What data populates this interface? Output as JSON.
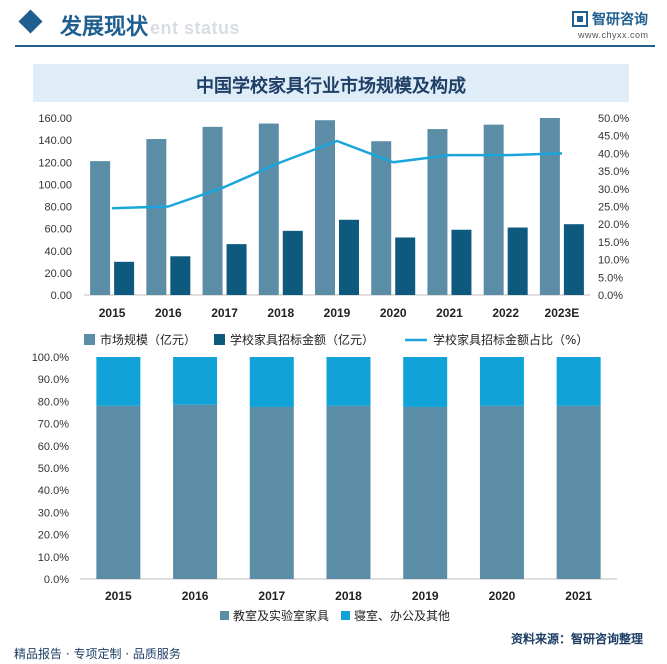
{
  "header": {
    "title": "发展现状",
    "watermark": "ent status",
    "brand_name": "智研咨询",
    "brand_url": "www.chyxx.com"
  },
  "footer": {
    "left": "精品报告 · 专项定制 · 品质服务",
    "source": "资料来源：智研咨询整理"
  },
  "colors": {
    "market": "#5b8ea6",
    "amount": "#0e5a7e",
    "share": "#1aa5dc",
    "classroom": "#5b8ea6",
    "dorm": "#11a3d8",
    "accent": "#1f5f8f"
  },
  "chart_data": [
    {
      "type": "bar",
      "title": "中国学校家具行业市场规模及构成",
      "categories": [
        "2015",
        "2016",
        "2017",
        "2018",
        "2019",
        "2020",
        "2021",
        "2022",
        "2023E"
      ],
      "series": [
        {
          "name": "市场规模（亿元）",
          "type": "bar",
          "axis": "left",
          "values": [
            121,
            141,
            152,
            155,
            158,
            139,
            150,
            154,
            160
          ]
        },
        {
          "name": "学校家具招标金额（亿元）",
          "type": "bar",
          "axis": "left",
          "values": [
            30,
            35,
            46,
            58,
            68,
            52,
            59,
            61,
            64
          ]
        },
        {
          "name": "学校家具招标金额占比（%）",
          "type": "line",
          "axis": "right",
          "values": [
            24.5,
            25.0,
            30.5,
            37.5,
            43.5,
            37.5,
            39.5,
            39.5,
            40.0
          ]
        }
      ],
      "left_axis": {
        "min": 0,
        "max": 160,
        "step": 20,
        "format": "0.00"
      },
      "right_axis": {
        "min": 0,
        "max": 50,
        "step": 5,
        "format": "0.0%"
      },
      "legend_position": "bottom",
      "grid": false
    },
    {
      "type": "bar",
      "stacked": true,
      "percent": true,
      "categories": [
        "2015",
        "2016",
        "2017",
        "2018",
        "2019",
        "2020",
        "2021"
      ],
      "series": [
        {
          "name": "教室及实验室家具",
          "values": [
            78,
            78.5,
            77.5,
            78,
            77.5,
            78,
            78
          ]
        },
        {
          "name": "寝室、办公及其他",
          "values": [
            22,
            21.5,
            22.5,
            22,
            22.5,
            22,
            22
          ]
        }
      ],
      "y_axis": {
        "min": 0,
        "max": 100,
        "step": 10,
        "format": "0.0%"
      },
      "legend_position": "bottom",
      "grid": false
    }
  ]
}
